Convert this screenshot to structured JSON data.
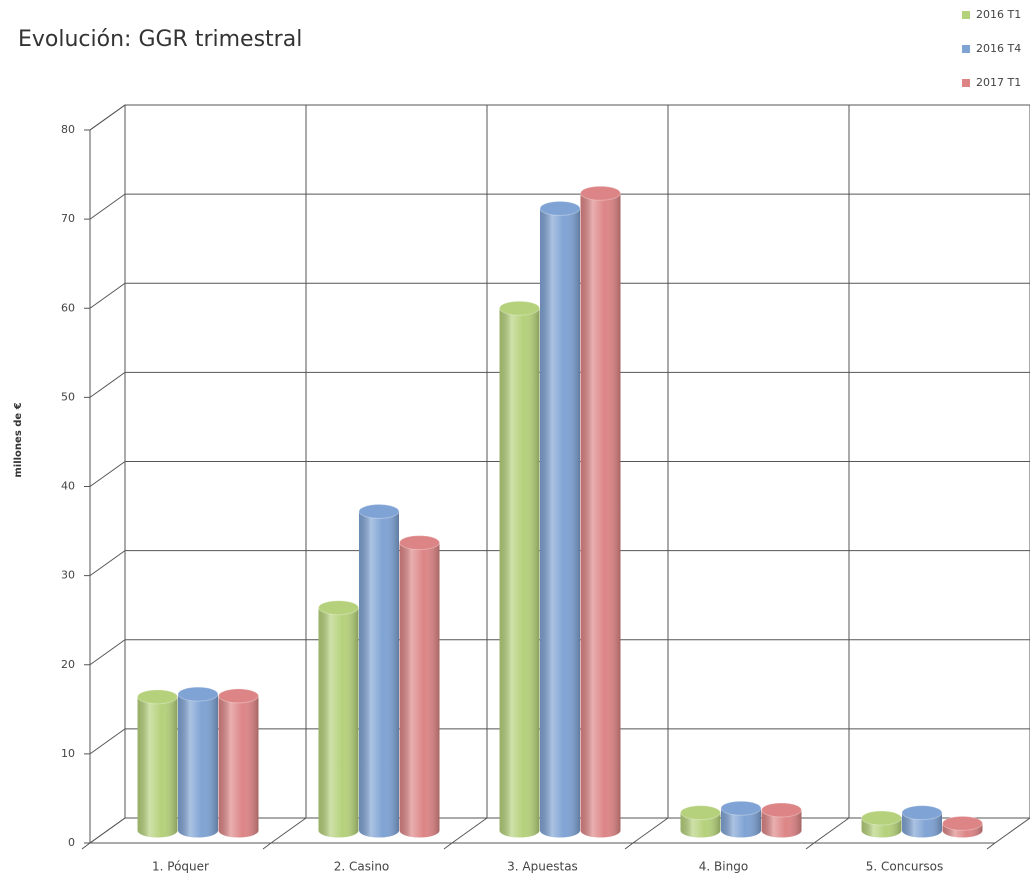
{
  "chart_data": {
    "type": "bar3d",
    "title": "Evolución: GGR trimestral",
    "ylabel": "millones de €",
    "categories": [
      "1. Póquer",
      "2. Casino",
      "3. Apuestas",
      "4. Bingo",
      "5. Concursos"
    ],
    "series": [
      {
        "name": "2016 T1",
        "color": "#b5d17b",
        "values": [
          15,
          25,
          58.6,
          2,
          1.4
        ]
      },
      {
        "name": "2016 T4",
        "color": "#7fa3d4",
        "values": [
          15.3,
          35.8,
          69.8,
          2.5,
          2
        ]
      },
      {
        "name": "2017 T1",
        "color": "#dd8586",
        "values": [
          15.1,
          32.3,
          71.5,
          2.3,
          0.8
        ]
      }
    ],
    "ylim": [
      0,
      80
    ],
    "yticks": [
      0,
      10,
      20,
      30,
      40,
      50,
      60,
      70,
      80
    ],
    "grid": true
  }
}
